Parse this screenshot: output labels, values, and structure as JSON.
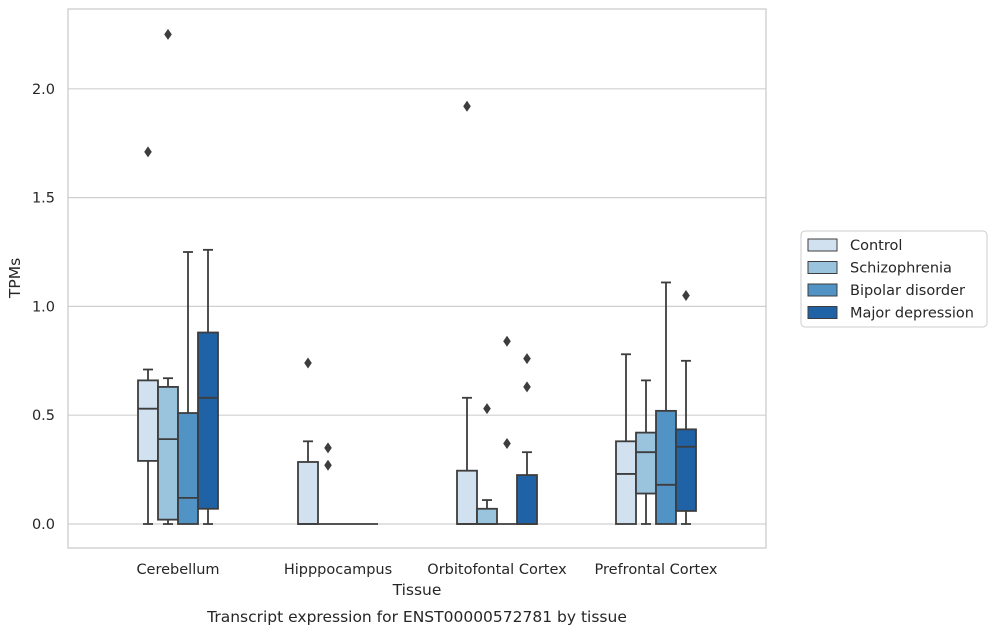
{
  "chart_data": {
    "type": "box",
    "xlabel": "Tissue",
    "ylabel": "TPMs",
    "caption": "Transcript expression for ENST00000572781 by tissue",
    "ylim": [
      -0.11,
      2.37
    ],
    "yticks": [
      "0.0",
      "0.5",
      "1.0",
      "1.5",
      "2.0"
    ],
    "grid": "horizontal",
    "legend_position": "right",
    "categories": [
      "Cerebellum",
      "Hipppocampus",
      "Orbitofontal Cortex",
      "Prefrontal Cortex"
    ],
    "series": [
      {
        "name": "Control",
        "color": "#d2e1f0",
        "boxes": [
          {
            "whislo": 0.0,
            "q1": 0.29,
            "med": 0.53,
            "q3": 0.66,
            "whishi": 0.71,
            "fliers": [
              1.71
            ]
          },
          {
            "whislo": 0.0,
            "q1": 0.0,
            "med": 0.0,
            "q3": 0.285,
            "whishi": 0.38,
            "fliers": [
              0.74
            ]
          },
          {
            "whislo": 0.0,
            "q1": 0.0,
            "med": 0.0,
            "q3": 0.245,
            "whishi": 0.58,
            "fliers": [
              1.92
            ]
          },
          {
            "whislo": 0.0,
            "q1": 0.0,
            "med": 0.23,
            "q3": 0.38,
            "whishi": 0.78,
            "fliers": []
          }
        ]
      },
      {
        "name": "Schizophrenia",
        "color": "#9ac3de",
        "boxes": [
          {
            "whislo": 0.0,
            "q1": 0.02,
            "med": 0.39,
            "q3": 0.63,
            "whishi": 0.67,
            "fliers": [
              2.25
            ]
          },
          {
            "whislo": 0.0,
            "q1": 0.0,
            "med": 0.0,
            "q3": 0.0,
            "whishi": 0.0,
            "fliers": [
              0.35,
              0.27
            ]
          },
          {
            "whislo": 0.0,
            "q1": 0.0,
            "med": 0.0,
            "q3": 0.07,
            "whishi": 0.11,
            "fliers": [
              0.53
            ]
          },
          {
            "whislo": 0.0,
            "q1": 0.14,
            "med": 0.33,
            "q3": 0.42,
            "whishi": 0.66,
            "fliers": []
          }
        ]
      },
      {
        "name": "Bipolar disorder",
        "color": "#5093c4",
        "boxes": [
          {
            "whislo": 0.0,
            "q1": 0.0,
            "med": 0.12,
            "q3": 0.51,
            "whishi": 1.25,
            "fliers": []
          },
          {
            "whislo": 0.0,
            "q1": 0.0,
            "med": 0.0,
            "q3": 0.0,
            "whishi": 0.0,
            "fliers": []
          },
          {
            "whislo": 0.0,
            "q1": 0.0,
            "med": 0.0,
            "q3": 0.0,
            "whishi": 0.0,
            "fliers": [
              0.84,
              0.37
            ]
          },
          {
            "whislo": 0.0,
            "q1": 0.0,
            "med": 0.18,
            "q3": 0.52,
            "whishi": 1.11,
            "fliers": []
          }
        ]
      },
      {
        "name": "Major depression",
        "color": "#2062a6",
        "boxes": [
          {
            "whislo": 0.0,
            "q1": 0.07,
            "med": 0.58,
            "q3": 0.88,
            "whishi": 1.26,
            "fliers": []
          },
          {
            "whislo": 0.0,
            "q1": 0.0,
            "med": 0.0,
            "q3": 0.0,
            "whishi": 0.0,
            "fliers": []
          },
          {
            "whislo": 0.0,
            "q1": 0.0,
            "med": 0.0,
            "q3": 0.225,
            "whishi": 0.33,
            "fliers": [
              0.76,
              0.63
            ]
          },
          {
            "whislo": 0.0,
            "q1": 0.06,
            "med": 0.355,
            "q3": 0.435,
            "whishi": 0.75,
            "fliers": [
              1.05
            ]
          }
        ]
      }
    ]
  }
}
